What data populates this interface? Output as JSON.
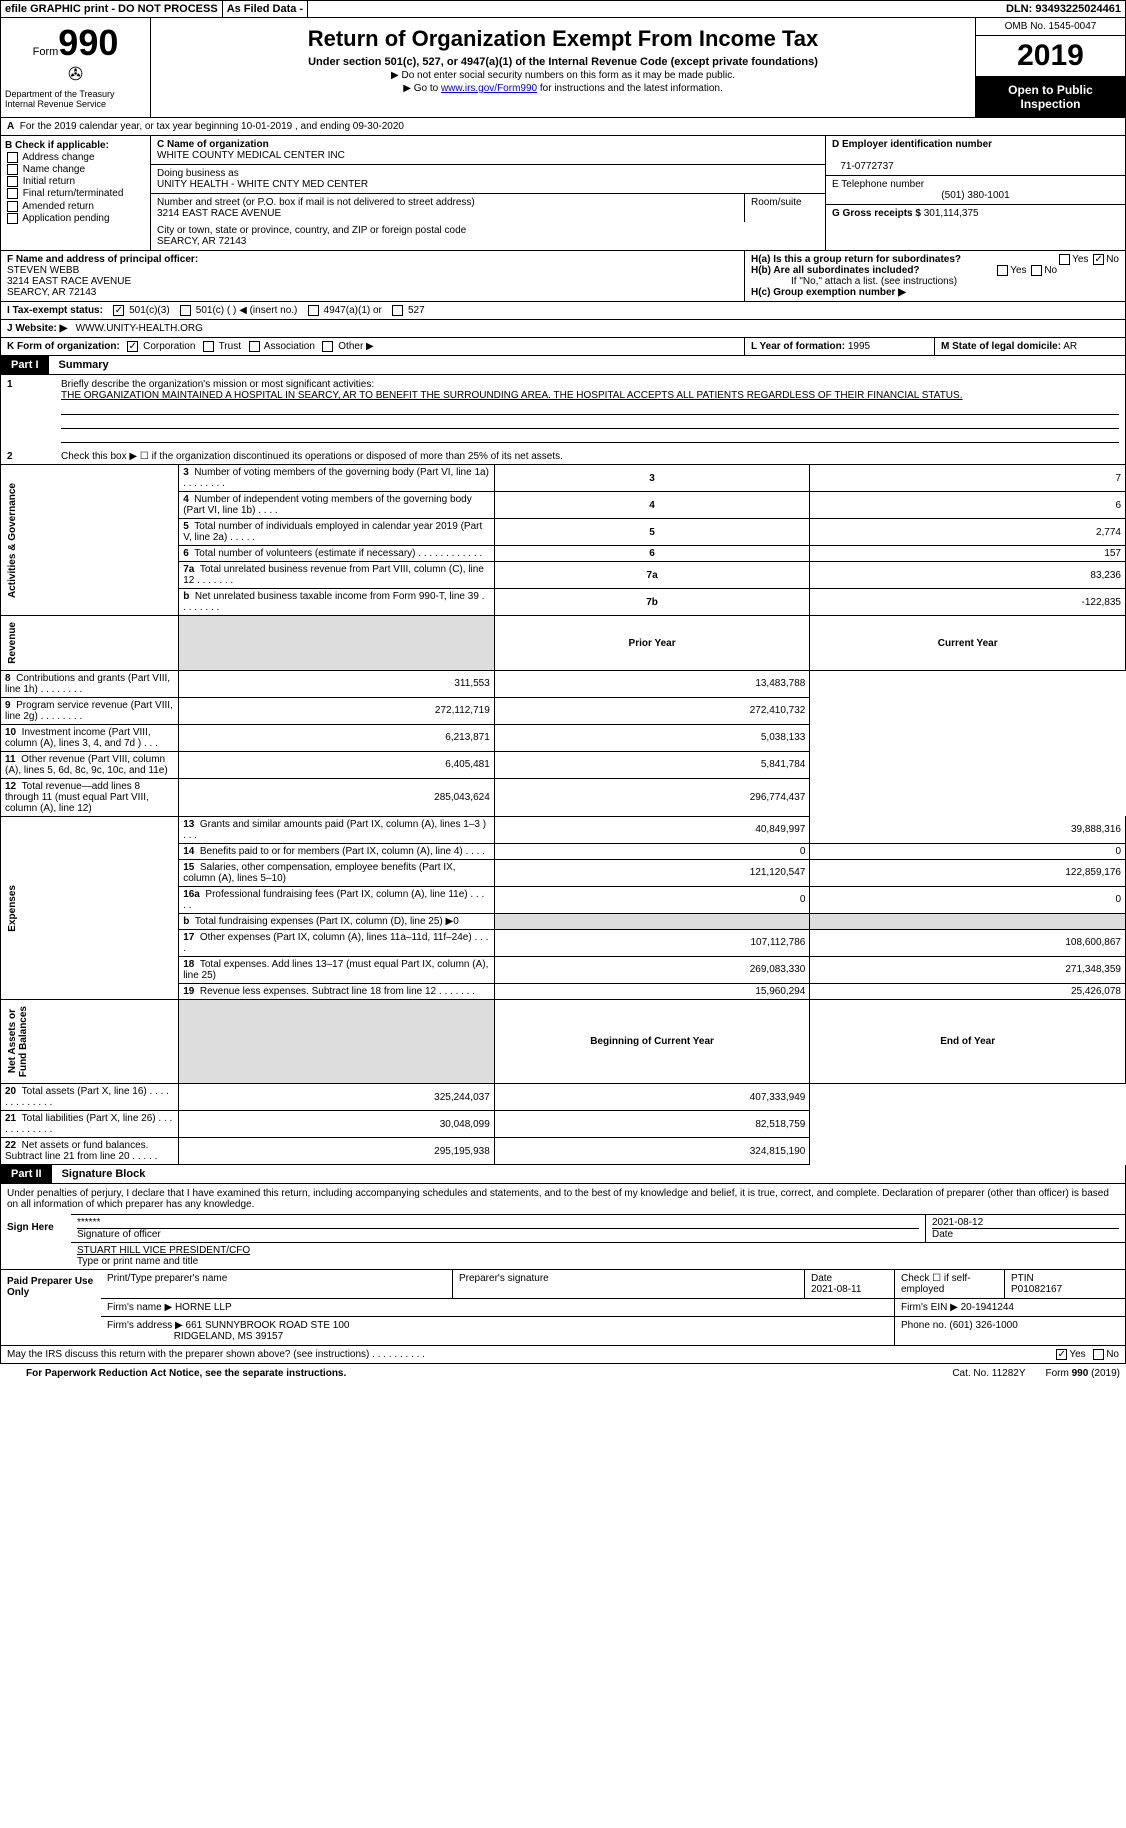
{
  "topbar": {
    "efile": "efile GRAPHIC print - DO NOT PROCESS",
    "asfiled": "As Filed Data -",
    "dln_label": "DLN:",
    "dln": "93493225024461"
  },
  "header": {
    "form_word": "Form",
    "form_num": "990",
    "dept": "Department of the Treasury\nInternal Revenue Service",
    "title": "Return of Organization Exempt From Income Tax",
    "sub1": "Under section 501(c), 527, or 4947(a)(1) of the Internal Revenue Code (except private foundations)",
    "sub2": "▶ Do not enter social security numbers on this form as it may be made public.",
    "sub3_pre": "▶ Go to ",
    "sub3_link": "www.irs.gov/Form990",
    "sub3_post": " for instructions and the latest information.",
    "omb": "OMB No. 1545-0047",
    "year": "2019",
    "open": "Open to Public Inspection"
  },
  "rowA": {
    "label": "A",
    "text": "For the 2019 calendar year, or tax year beginning 10-01-2019   , and ending 09-30-2020"
  },
  "B": {
    "label": "B Check if applicable:",
    "items": [
      "Address change",
      "Name change",
      "Initial return",
      "Final return/terminated",
      "Amended return",
      "Application pending"
    ]
  },
  "C": {
    "label": "C Name of organization",
    "name": "WHITE COUNTY MEDICAL CENTER INC",
    "dba_label": "Doing business as",
    "dba": "UNITY HEALTH - WHITE CNTY MED CENTER",
    "street_label": "Number and street (or P.O. box if mail is not delivered to street address)",
    "street": "3214 EAST RACE AVENUE",
    "room_label": "Room/suite",
    "city_label": "City or town, state or province, country, and ZIP or foreign postal code",
    "city": "SEARCY, AR  72143"
  },
  "D": {
    "label": "D Employer identification number",
    "value": "71-0772737"
  },
  "E": {
    "label": "E Telephone number",
    "value": "(501) 380-1001"
  },
  "G": {
    "label": "G Gross receipts $",
    "value": "301,114,375"
  },
  "F": {
    "label": "F  Name and address of principal officer:",
    "name": "STEVEN WEBB",
    "street": "3214 EAST RACE AVENUE",
    "city": "SEARCY, AR  72143"
  },
  "H": {
    "a_label": "H(a)  Is this a group return for subordinates?",
    "a_no_checked": true,
    "b_label": "H(b)  Are all subordinates included?",
    "b_note": "If \"No,\" attach a list. (see instructions)",
    "c_label": "H(c)  Group exemption number ▶"
  },
  "I": {
    "label": "I   Tax-exempt status:",
    "c501c3_checked": true,
    "options": [
      "501(c)(3)",
      "501(c) (   ) ◀ (insert no.)",
      "4947(a)(1) or",
      "527"
    ]
  },
  "J": {
    "label": "J   Website: ▶",
    "value": "WWW.UNITY-HEALTH.ORG"
  },
  "K": {
    "label": "K Form of organization:",
    "corp_checked": true,
    "opts": [
      "Corporation",
      "Trust",
      "Association",
      "Other ▶"
    ]
  },
  "L": {
    "label": "L Year of formation:",
    "value": "1995"
  },
  "M": {
    "label": "M State of legal domicile:",
    "value": "AR"
  },
  "partI": {
    "tag": "Part I",
    "title": "Summary"
  },
  "mission": {
    "q1_label": "1",
    "q1": "Briefly describe the organization's mission or most significant activities:",
    "text": "THE ORGANIZATION MAINTAINED A HOSPITAL IN SEARCY, AR TO BENEFIT THE SURROUNDING AREA. THE HOSPITAL ACCEPTS ALL PATIENTS REGARDLESS OF THEIR FINANCIAL STATUS.",
    "q2_label": "2",
    "q2": "Check this box ▶ ☐ if the organization discontinued its operations or disposed of more than 25% of its net assets."
  },
  "gov_lines": [
    {
      "n": "3",
      "desc": "Number of voting members of the governing body (Part VI, line 1a)   .   .   .   .   .   .   .   .",
      "box": "3",
      "val": "7"
    },
    {
      "n": "4",
      "desc": "Number of independent voting members of the governing body (Part VI, line 1b)   .   .   .   .",
      "box": "4",
      "val": "6"
    },
    {
      "n": "5",
      "desc": "Total number of individuals employed in calendar year 2019 (Part V, line 2a)   .   .   .   .   .",
      "box": "5",
      "val": "2,774"
    },
    {
      "n": "6",
      "desc": "Total number of volunteers (estimate if necessary)   .   .   .   .   .   .   .   .   .   .   .   .",
      "box": "6",
      "val": "157"
    },
    {
      "n": "7a",
      "desc": "Total unrelated business revenue from Part VIII, column (C), line 12   .   .   .   .   .   .   .",
      "box": "7a",
      "val": "83,236"
    },
    {
      "n": "b",
      "desc": "Net unrelated business taxable income from Form 990-T, line 39   .   .   .   .   .   .   .   .",
      "box": "7b",
      "val": "-122,835"
    }
  ],
  "col_hdr": {
    "prior": "Prior Year",
    "current": "Current Year"
  },
  "revenue": [
    {
      "n": "8",
      "desc": "Contributions and grants (Part VIII, line 1h)   .   .   .   .   .   .   .   .",
      "p": "311,553",
      "c": "13,483,788"
    },
    {
      "n": "9",
      "desc": "Program service revenue (Part VIII, line 2g)   .   .   .   .   .   .   .   .",
      "p": "272,112,719",
      "c": "272,410,732"
    },
    {
      "n": "10",
      "desc": "Investment income (Part VIII, column (A), lines 3, 4, and 7d )   .   .   .",
      "p": "6,213,871",
      "c": "5,038,133"
    },
    {
      "n": "11",
      "desc": "Other revenue (Part VIII, column (A), lines 5, 6d, 8c, 9c, 10c, and 11e)",
      "p": "6,405,481",
      "c": "5,841,784"
    },
    {
      "n": "12",
      "desc": "Total revenue—add lines 8 through 11 (must equal Part VIII, column (A), line 12)",
      "p": "285,043,624",
      "c": "296,774,437"
    }
  ],
  "expenses": [
    {
      "n": "13",
      "desc": "Grants and similar amounts paid (Part IX, column (A), lines 1–3 )   .   .   .",
      "p": "40,849,997",
      "c": "39,888,316"
    },
    {
      "n": "14",
      "desc": "Benefits paid to or for members (Part IX, column (A), line 4)   .   .   .   .",
      "p": "0",
      "c": "0"
    },
    {
      "n": "15",
      "desc": "Salaries, other compensation, employee benefits (Part IX, column (A), lines 5–10)",
      "p": "121,120,547",
      "c": "122,859,176"
    },
    {
      "n": "16a",
      "desc": "Professional fundraising fees (Part IX, column (A), line 11e)   .   .   .   .   .",
      "p": "0",
      "c": "0"
    },
    {
      "n": "b",
      "desc": "Total fundraising expenses (Part IX, column (D), line 25) ▶0",
      "p": "",
      "c": "",
      "shaded": true
    },
    {
      "n": "17",
      "desc": "Other expenses (Part IX, column (A), lines 11a–11d, 11f–24e)   .   .   .   .",
      "p": "107,112,786",
      "c": "108,600,867"
    },
    {
      "n": "18",
      "desc": "Total expenses. Add lines 13–17 (must equal Part IX, column (A), line 25)",
      "p": "269,083,330",
      "c": "271,348,359"
    },
    {
      "n": "19",
      "desc": "Revenue less expenses. Subtract line 18 from line 12   .   .   .   .   .   .   .",
      "p": "15,960,294",
      "c": "25,426,078"
    }
  ],
  "net_hdr": {
    "begin": "Beginning of Current Year",
    "end": "End of Year"
  },
  "netassets": [
    {
      "n": "20",
      "desc": "Total assets (Part X, line 16)   .   .   .   .   .   .   .   .   .   .   .   .   .",
      "p": "325,244,037",
      "c": "407,333,949"
    },
    {
      "n": "21",
      "desc": "Total liabilities (Part X, line 26)   .   .   .   .   .   .   .   .   .   .   .   .",
      "p": "30,048,099",
      "c": "82,518,759"
    },
    {
      "n": "22",
      "desc": "Net assets or fund balances. Subtract line 21 from line 20   .   .   .   .   .",
      "p": "295,195,938",
      "c": "324,815,190"
    }
  ],
  "vtabs": {
    "gov": "Activities & Governance",
    "rev": "Revenue",
    "exp": "Expenses",
    "net": "Net Assets or\nFund Balances"
  },
  "partII": {
    "tag": "Part II",
    "title": "Signature Block"
  },
  "sign": {
    "penalty": "Under penalties of perjury, I declare that I have examined this return, including accompanying schedules and statements, and to the best of my knowledge and belief, it is true, correct, and complete. Declaration of preparer (other than officer) is based on all information of which preparer has any knowledge.",
    "here": "Sign Here",
    "sig_stars": "******",
    "sig_lbl": "Signature of officer",
    "date": "2021-08-12",
    "date_lbl": "Date",
    "name": "STUART HILL VICE PRESIDENT/CFO",
    "name_lbl": "Type or print name and title"
  },
  "prep": {
    "label": "Paid Preparer Use Only",
    "h_print": "Print/Type preparer's name",
    "h_sig": "Preparer's signature",
    "h_date": "Date",
    "date": "2021-08-11",
    "h_check": "Check ☐ if self-employed",
    "h_ptin": "PTIN",
    "ptin": "P01082167",
    "firm_lbl": "Firm's name    ▶",
    "firm": "HORNE LLP",
    "ein_lbl": "Firm's EIN ▶",
    "ein": "20-1941244",
    "addr_lbl": "Firm's address ▶",
    "addr1": "661 SUNNYBROOK ROAD STE 100",
    "addr2": "RIDGELAND, MS  39157",
    "phone_lbl": "Phone no.",
    "phone": "(601) 326-1000"
  },
  "discuss": {
    "q": "May the IRS discuss this return with the preparer shown above? (see instructions)   .   .   .   .   .   .   .   .   .   .",
    "yes_checked": true
  },
  "foot": {
    "paperwork": "For Paperwork Reduction Act Notice, see the separate instructions.",
    "cat": "Cat. No. 11282Y",
    "form": "Form 990 (2019)"
  },
  "colors": {
    "black": "#000000",
    "white": "#ffffff",
    "shade": "#dddddd",
    "link": "#0000ee"
  }
}
